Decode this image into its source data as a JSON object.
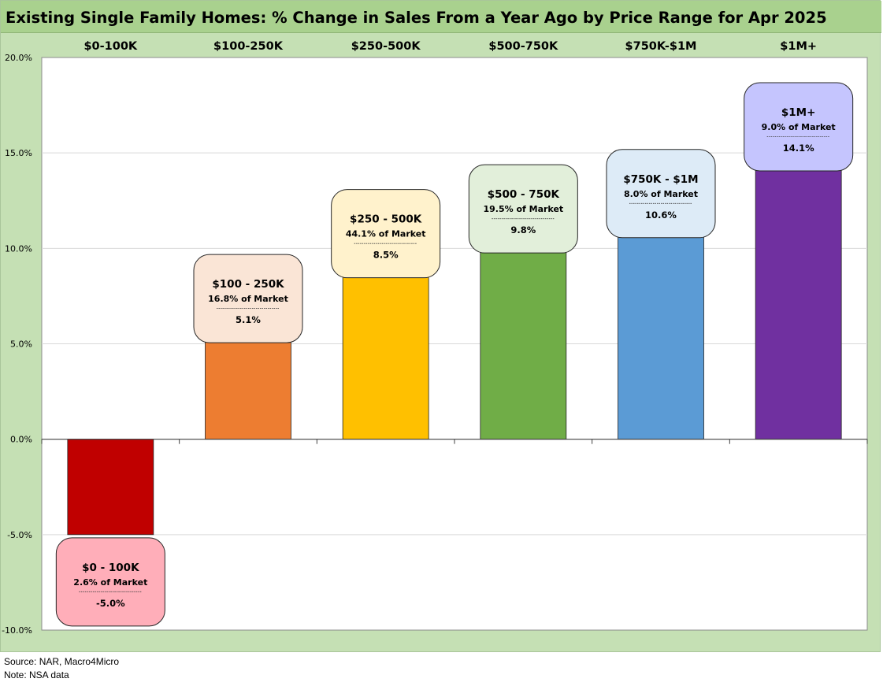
{
  "chart_data": {
    "type": "bar",
    "title": "Existing Single Family Homes: % Change in Sales From a Year Ago by Price Range for Apr 2025",
    "categories": [
      "$0-100K",
      "$100-250K",
      "$250-500K",
      "$500-750K",
      "$750K-$1M",
      "$1M+"
    ],
    "values": [
      -5.0,
      5.1,
      8.5,
      9.8,
      10.6,
      14.1
    ],
    "colors": [
      "#c00000",
      "#ed7d31",
      "#ffc000",
      "#70ad47",
      "#5b9bd5",
      "#7030a0"
    ],
    "ylim": [
      -10,
      20
    ],
    "yticks": [
      -10,
      -5,
      0,
      5,
      10,
      15,
      20
    ],
    "ytick_labels": [
      "-10.0%",
      "-5.0%",
      "0.0%",
      "5.0%",
      "10.0%",
      "15.0%",
      "20.0%"
    ],
    "grid": true,
    "xlabel": "",
    "ylabel": "",
    "annotations": [
      {
        "title": "$0 - 100K",
        "share": "2.6% of Market",
        "value": "-5.0%",
        "fill": "#ffaeb9"
      },
      {
        "title": "$100 - 250K",
        "share": "16.8% of Market",
        "value": "5.1%",
        "fill": "#fae5d6"
      },
      {
        "title": "$250 - 500K",
        "share": "44.1% of Market",
        "value": "8.5%",
        "fill": "#fff2cc"
      },
      {
        "title": "$500 - 750K",
        "share": "19.5% of Market",
        "value": "9.8%",
        "fill": "#e2efda"
      },
      {
        "title": "$750K - $1M",
        "share": "8.0% of Market",
        "value": "10.6%",
        "fill": "#ddebf7"
      },
      {
        "title": "$1M+",
        "share": "9.0% of Market",
        "value": "14.1%",
        "fill": "#c5c5fe"
      }
    ]
  },
  "footnotes": {
    "source": "Source: NAR, Macro4Micro",
    "note": "Note: NSA data"
  }
}
